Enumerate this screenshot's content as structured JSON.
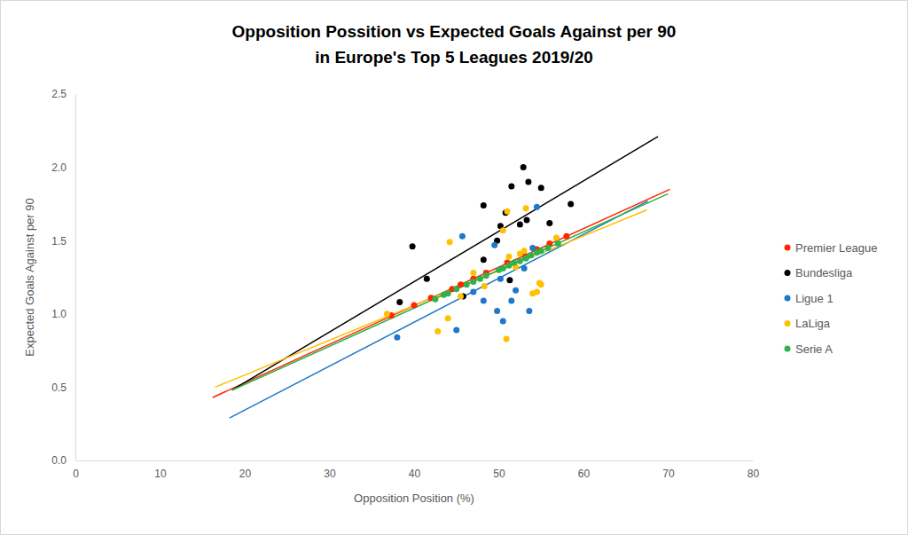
{
  "chart_data": {
    "type": "scatter",
    "title": [
      "Opposition Possition vs Expected Goals Against per 90",
      "in Europe's Top 5 Leagues 2019/20"
    ],
    "x_label": "Opposition Position (%)",
    "y_label": "Expected Goals Against per 90",
    "xlim": [
      0,
      80
    ],
    "xticks": [
      0,
      10,
      20,
      30,
      40,
      50,
      60,
      70,
      80
    ],
    "ylim": [
      0,
      2.5
    ],
    "yticks": [
      {
        "value": 0,
        "label": "0.0"
      },
      0.5,
      {
        "value": 1,
        "label": "1.0"
      },
      1.5,
      {
        "value": 2,
        "label": "2.0"
      },
      2.5
    ],
    "grid": false,
    "legend": "right",
    "series": [
      {
        "name": "Premier League",
        "color": "#ff2600",
        "x": [
          37.3,
          40.0,
          42.0,
          44.5,
          45.5,
          47.0,
          48.5,
          51.0,
          53.0,
          54.5,
          56.0,
          58.0
        ],
        "values": [
          0.99,
          1.06,
          1.11,
          1.17,
          1.2,
          1.24,
          1.28,
          1.35,
          1.4,
          1.44,
          1.48,
          1.53
        ],
        "trend_x": [
          16.2,
          70.2
        ],
        "trend_y": [
          0.43,
          1.85
        ]
      },
      {
        "name": "Bundesliga",
        "color": "#000000",
        "x": [
          38.3,
          39.8,
          41.5,
          45.8,
          48.2,
          48.2,
          49.8,
          50.2,
          50.8,
          51.3,
          51.5,
          52.5,
          52.9,
          53.3,
          53.5,
          55.0,
          56.0,
          58.5
        ],
        "values": [
          1.08,
          1.46,
          1.24,
          1.12,
          1.74,
          1.37,
          1.5,
          1.6,
          1.69,
          1.23,
          1.87,
          1.61,
          2.0,
          1.64,
          1.9,
          1.86,
          1.62,
          1.75
        ],
        "trend_x": [
          18.5,
          68.8
        ],
        "trend_y": [
          0.48,
          2.21
        ]
      },
      {
        "name": "Ligue 1",
        "color": "#1f78c8",
        "x": [
          38.0,
          45.0,
          45.7,
          47.0,
          48.2,
          49.5,
          49.8,
          50.2,
          50.5,
          51.5,
          52.0,
          53.0,
          53.2,
          53.6,
          54.0,
          54.5
        ],
        "values": [
          0.84,
          0.89,
          1.53,
          1.15,
          1.09,
          1.47,
          1.02,
          1.24,
          0.95,
          1.09,
          1.16,
          1.31,
          1.38,
          1.02,
          1.45,
          1.73
        ],
        "trend_x": [
          18.2,
          67.6
        ],
        "trend_y": [
          0.29,
          1.77
        ]
      },
      {
        "name": "LaLiga",
        "color": "#ffc000",
        "x": [
          36.8,
          42.8,
          44.0,
          44.2,
          45.5,
          47.0,
          48.3,
          50.5,
          50.9,
          51.0,
          51.2,
          52.0,
          52.5,
          53.0,
          53.2,
          54.0,
          54.5,
          54.8,
          55.0,
          56.8
        ],
        "values": [
          1.0,
          0.88,
          0.97,
          1.49,
          1.12,
          1.28,
          1.19,
          1.57,
          0.83,
          1.7,
          1.39,
          1.32,
          1.41,
          1.43,
          1.72,
          1.14,
          1.15,
          1.21,
          1.2,
          1.52
        ],
        "trend_x": [
          16.5,
          67.5
        ],
        "trend_y": [
          0.5,
          1.71
        ]
      },
      {
        "name": "Serie A",
        "color": "#2eb24a",
        "x": [
          42.5,
          43.5,
          44.0,
          45.0,
          46.2,
          47.0,
          47.8,
          48.5,
          50.0,
          50.5,
          51.2,
          51.8,
          52.5,
          53.2,
          53.8,
          54.5,
          55.0,
          55.8,
          57.0
        ],
        "values": [
          1.1,
          1.13,
          1.14,
          1.17,
          1.2,
          1.22,
          1.24,
          1.26,
          1.3,
          1.31,
          1.33,
          1.35,
          1.36,
          1.38,
          1.4,
          1.42,
          1.43,
          1.45,
          1.48
        ],
        "trend_x": [
          18.5,
          70.0
        ],
        "trend_y": [
          0.48,
          1.82
        ]
      }
    ]
  }
}
